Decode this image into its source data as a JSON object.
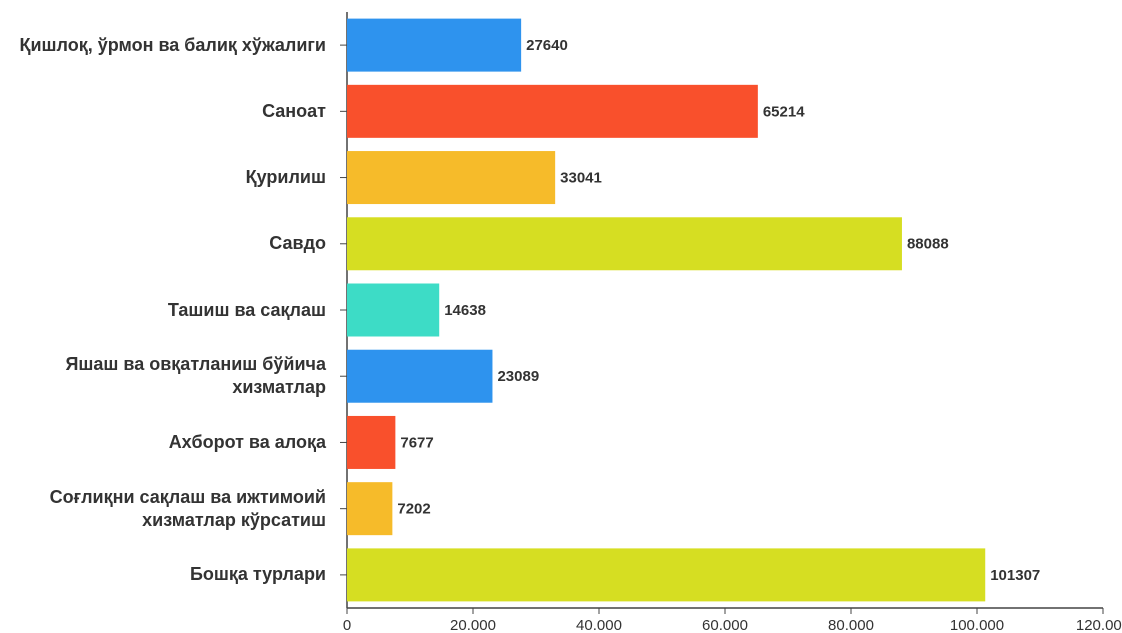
{
  "chart_data": {
    "type": "bar",
    "orientation": "horizontal",
    "categories": [
      "Қишлоқ, ўрмон ва балиқ хўжалиги",
      "Саноат",
      "Қурилиш",
      "Савдо",
      "Ташиш ва сақлаш",
      "Яшаш ва овқатланиш бўйича хизматлар",
      "Ахборот ва алоқа",
      "Соғлиқни сақлаш ва ижтимоий хизматлар кўрсатиш",
      "Бошқа турлари"
    ],
    "values": [
      27640,
      65214,
      33041,
      88088,
      14638,
      23089,
      7677,
      7202,
      101307
    ],
    "colors": [
      "#2e93ee",
      "#f9502c",
      "#f6bb2a",
      "#d6de22",
      "#3ddcc6",
      "#2e93ee",
      "#f9502c",
      "#f6bb2a",
      "#d6de22"
    ],
    "xlim": [
      0,
      120000
    ],
    "xticks": [
      0,
      {
        "value": 20000,
        "label": "20.000"
      },
      {
        "value": 40000,
        "label": "40.000"
      },
      {
        "value": 60000,
        "label": "60.000"
      },
      {
        "value": 80000,
        "label": "80.000"
      },
      {
        "value": 100000,
        "label": "100.000"
      },
      {
        "value": 120000,
        "label": "120.000"
      }
    ],
    "grid": false
  }
}
